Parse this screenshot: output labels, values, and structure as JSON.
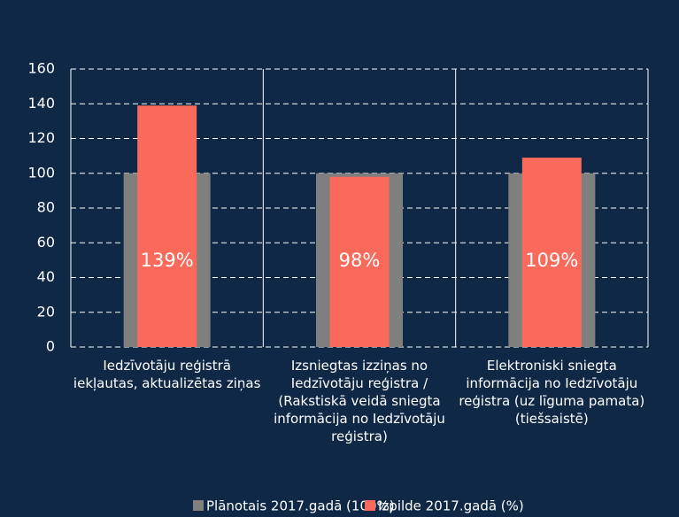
{
  "chart_data": {
    "type": "bar",
    "categories": [
      "Iedzīvotāju reģistrā iekļautas, aktualizētas ziņas",
      "Izsniegtas izziņas no Iedzīvotāju reģistra / (Rakstiskā veidā sniegta informācija no Iedzīvotāju reģistra)",
      "Elektroniski sniegta informācija no Iedzīvotāju reģistra (uz līguma pamata) (tiešsaistē)"
    ],
    "series": [
      {
        "name": "Plānotais 2017.gadā (100%)",
        "color": "#7f7f7f",
        "values": [
          100,
          100,
          100
        ]
      },
      {
        "name": "Izpilde 2017.gadā (%)",
        "color": "#f96a5a",
        "values": [
          139,
          98,
          109
        ],
        "value_labels": [
          "139%",
          "98%",
          "109%"
        ]
      }
    ],
    "ylim": [
      0,
      160
    ],
    "yticks": [
      0,
      20,
      40,
      60,
      80,
      100,
      120,
      140,
      160
    ],
    "grid": true,
    "legend": "bottom"
  }
}
